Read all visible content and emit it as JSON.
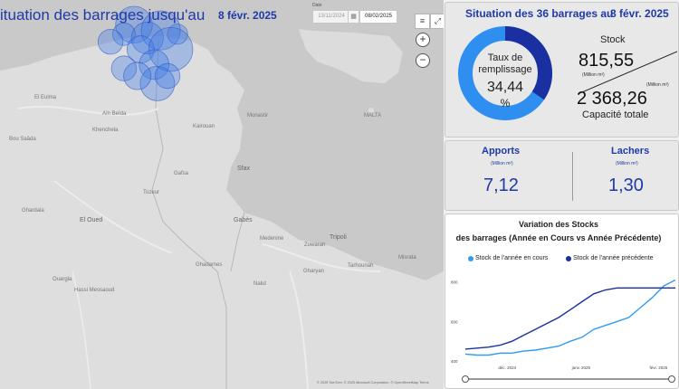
{
  "header": {
    "title": "ituation des barrages jusqu'au",
    "date": "8 févr. 2025",
    "date_filter_label": "Date",
    "date_from": "13/11/2024",
    "date_to": "08/02/2025"
  },
  "map": {
    "attribution": "© 2025 TomTom, © 2025 Microsoft Corporation, © OpenStreetMap  Terms",
    "places": [
      {
        "name": "El Eulma"
      },
      {
        "name": "Aïn Beïda"
      },
      {
        "name": "Bou Saâda"
      },
      {
        "name": "Khenchela"
      },
      {
        "name": "Kairouan"
      },
      {
        "name": "Monastir"
      },
      {
        "name": "Sfax"
      },
      {
        "name": "Gafsa"
      },
      {
        "name": "Tozeur"
      },
      {
        "name": "El Oued"
      },
      {
        "name": "Gabès"
      },
      {
        "name": "Medenine"
      },
      {
        "name": "Zuwarah"
      },
      {
        "name": "Tripoli"
      },
      {
        "name": "Ouargla"
      },
      {
        "name": "Hassi Messaoud"
      },
      {
        "name": "Ghadames"
      },
      {
        "name": "Nalut"
      },
      {
        "name": "Gharyan"
      },
      {
        "name": "Misrata"
      },
      {
        "name": "Tarhounah"
      },
      {
        "name": "MALTA"
      },
      {
        "name": "Ghardaia"
      }
    ],
    "bubbles": [
      {
        "lon": 9.3,
        "lat": 36.95,
        "level": 0.55
      },
      {
        "lon": 9.0,
        "lat": 36.7,
        "level": 0.25
      },
      {
        "lon": 8.6,
        "lat": 36.5,
        "level": 0.3
      },
      {
        "lon": 9.7,
        "lat": 36.6,
        "level": 0.45
      },
      {
        "lon": 10.1,
        "lat": 36.8,
        "level": 0.6
      },
      {
        "lon": 9.5,
        "lat": 36.3,
        "level": 0.35
      },
      {
        "lon": 10.6,
        "lat": 36.7,
        "level": 0.2
      },
      {
        "lon": 10.4,
        "lat": 36.3,
        "level": 0.7
      },
      {
        "lon": 9.9,
        "lat": 35.9,
        "level": 0.4
      },
      {
        "lon": 9.0,
        "lat": 35.8,
        "level": 0.3
      },
      {
        "lon": 10.0,
        "lat": 35.4,
        "level": 0.5
      },
      {
        "lon": 10.3,
        "lat": 35.6,
        "level": 0.3
      },
      {
        "lon": 9.4,
        "lat": 35.6,
        "level": 0.35
      }
    ],
    "zoom_in": "+",
    "zoom_out": "−"
  },
  "kpi": {
    "title": "Situation des 36 barrages  au",
    "date": "8 févr. 2025",
    "fill_rate_label_1": "Taux de",
    "fill_rate_label_2": "remplissage",
    "fill_rate_value": "34,44",
    "fill_rate_unit": "%",
    "fill_rate_fraction": 0.3444,
    "stock_label": "Stock",
    "stock_value": "815,55",
    "stock_unit": "(Million m³)",
    "capacity_unit": "(Million m³)",
    "capacity_value": "2 368,26",
    "capacity_label": "Capacité totale",
    "ring_color": "#2f8ff0",
    "ring_dark_color": "#1a2fa0"
  },
  "flows": {
    "apports_label": "Apports",
    "apports_unit": "(Million m³)",
    "apports_value": "7,12",
    "lachers_label": "Lachers",
    "lachers_unit": "(Million m³)",
    "lachers_value": "1,30"
  },
  "variation": {
    "title_line1": "Variation des Stocks",
    "title_line2": "des barrages (Année en Cours vs Année Précédente)",
    "legend_current": "Stock de l'année en cours",
    "legend_previous": "Stock de l'année précédente",
    "current_color": "#2f9bf2",
    "previous_color": "#1a2fa0"
  },
  "chart_data": {
    "type": "line",
    "x_tick_labels": [
      "déc. 2024",
      "janv. 2025",
      "févr. 2025"
    ],
    "y_tick_labels": [
      "400",
      "600",
      "800"
    ],
    "x": [
      0,
      5,
      10,
      15,
      20,
      25,
      30,
      35,
      40,
      45,
      50,
      55,
      60,
      65,
      70,
      75,
      80,
      85,
      90
    ],
    "ylim": [
      400,
      840
    ],
    "series": [
      {
        "name": "Stock de l'année en cours",
        "values": [
          435,
          430,
          430,
          440,
          440,
          450,
          455,
          465,
          475,
          500,
          520,
          560,
          580,
          600,
          620,
          670,
          720,
          780,
          810
        ]
      },
      {
        "name": "Stock de l'année précédente",
        "values": [
          460,
          465,
          470,
          480,
          500,
          530,
          560,
          590,
          620,
          660,
          700,
          740,
          760,
          770,
          770,
          770,
          770,
          770,
          770
        ]
      }
    ]
  }
}
